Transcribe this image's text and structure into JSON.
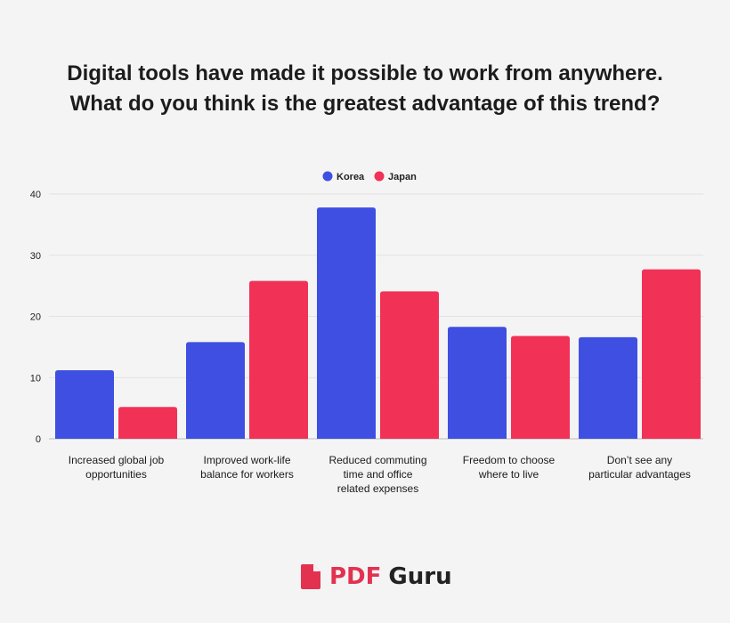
{
  "chart_data": {
    "type": "bar",
    "title_lines": [
      "Digital tools have made it possible to work from anywhere.",
      "What do you think is the greatest advantage of this trend?"
    ],
    "categories": [
      [
        "Increased global job",
        "opportunities"
      ],
      [
        "Improved work-life",
        "balance for workers"
      ],
      [
        "Reduced commuting",
        "time and office",
        "related expenses"
      ],
      [
        "Freedom to choose",
        "where to live"
      ],
      [
        "Don’t see any",
        "particular advantages"
      ]
    ],
    "series": [
      {
        "name": "Korea",
        "color": "#3e4fe2",
        "values": [
          11.2,
          15.8,
          37.8,
          18.3,
          16.6
        ]
      },
      {
        "name": "Japan",
        "color": "#f23157",
        "values": [
          5.2,
          25.8,
          24.1,
          16.8,
          27.7
        ]
      }
    ],
    "ylim": [
      0,
      40
    ],
    "yticks": [
      "0",
      "10",
      "20",
      "30",
      "40"
    ],
    "grid": true,
    "legend_position": "top-center"
  },
  "brand": {
    "name_part1": "PDF",
    "name_part2": "Guru",
    "icon": "document-icon",
    "color": "#e2324f"
  }
}
